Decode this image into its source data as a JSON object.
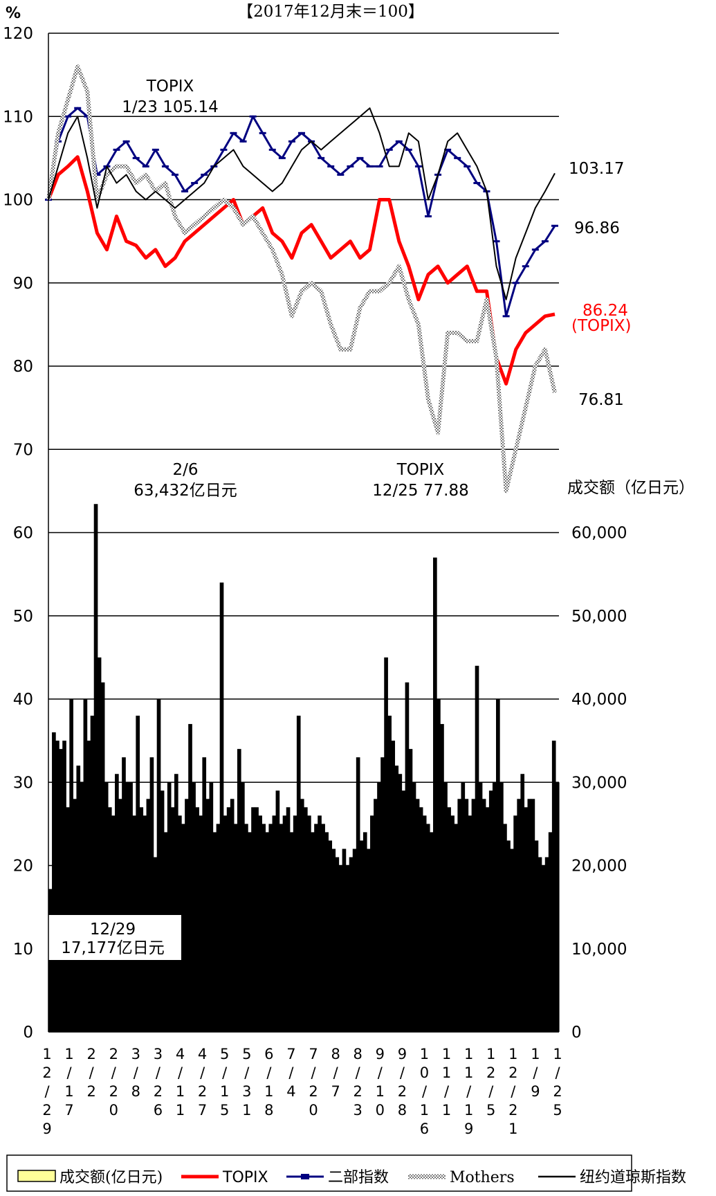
{
  "chart_data": {
    "type": "line",
    "title": "【2017年12月末＝100】",
    "left_axis_unit": "%",
    "left_ticks": [
      "120",
      "110",
      "100",
      "90",
      "80",
      "70",
      "60",
      "50",
      "40",
      "30",
      "20",
      "10",
      "0"
    ],
    "right_axis_label": "成交额（亿日元）",
    "right_ticks": [
      "60,000",
      "50,000",
      "40,000",
      "30,000",
      "20,000",
      "10,000",
      "0"
    ],
    "ylim": [
      0,
      120
    ],
    "volume_ylim": [
      0,
      120000
    ],
    "x_tick_labels": [
      "12/29",
      "1/17",
      "2/2",
      "2/20",
      "3/8",
      "3/26",
      "4/11",
      "4/27",
      "5/15",
      "5/31",
      "6/18",
      "7/4",
      "7/20",
      "8/7",
      "8/23",
      "9/10",
      "9/28",
      "10/16",
      "11/1",
      "11/19",
      "12/5",
      "12/21",
      "1/9",
      "1/25"
    ],
    "series": [
      {
        "name": "TOPIX",
        "color": "#ff0000",
        "values": [
          100,
          103,
          104,
          105.14,
          101,
          96,
          94,
          98,
          95,
          94.5,
          93,
          94,
          92,
          93,
          95,
          96,
          97,
          98,
          99,
          100,
          97,
          98,
          99,
          96,
          95,
          93,
          96,
          97,
          95,
          93,
          94,
          95,
          93,
          94,
          100,
          100,
          95,
          92,
          88,
          91,
          92,
          90,
          91,
          92,
          89,
          89,
          81,
          77.88,
          82,
          84,
          85,
          86,
          86.24
        ]
      },
      {
        "name": "二部指数",
        "color": "#000080",
        "values": [
          100,
          107,
          110,
          111,
          110,
          103,
          104,
          106,
          107,
          105,
          104,
          106,
          104,
          103,
          101,
          102,
          103,
          104,
          106,
          108,
          107,
          110,
          108,
          106,
          105,
          107,
          108,
          107,
          105,
          104,
          103,
          104,
          105,
          104,
          104,
          106,
          107,
          106,
          104,
          98,
          103,
          106,
          105,
          104,
          102,
          101,
          95,
          86,
          90,
          92,
          94,
          95,
          96.86
        ]
      },
      {
        "name": "Mothers",
        "color": "#888888",
        "values": [
          100,
          108,
          112,
          116,
          113,
          100,
          103,
          104,
          104,
          102,
          103,
          101,
          102,
          98,
          96,
          97,
          98,
          99,
          100,
          99,
          97,
          98,
          96,
          94,
          91,
          86,
          89,
          90,
          89,
          85,
          82,
          82,
          87,
          89,
          89,
          90,
          92,
          88,
          85,
          76,
          72,
          84,
          84,
          83,
          83,
          88,
          81,
          65,
          70,
          75,
          80,
          82,
          76.81
        ]
      },
      {
        "name": "纽约道琼斯指数",
        "color": "#000000",
        "values": [
          100,
          104,
          108,
          110,
          105,
          99,
          104,
          102,
          103,
          101,
          100,
          101,
          100,
          99,
          100,
          101,
          102,
          104,
          105,
          106,
          104,
          103,
          102,
          101,
          102,
          104,
          106,
          107,
          106,
          107,
          108,
          109,
          110,
          111,
          108,
          104,
          104,
          108,
          107,
          100,
          103,
          107,
          108,
          106,
          104,
          101,
          92,
          88,
          93,
          96,
          99,
          101,
          103.17
        ]
      }
    ],
    "volume_series": {
      "name": "成交额(亿日元)",
      "color": "#000000",
      "values": [
        17177,
        36000,
        35000,
        34000,
        35000,
        27000,
        40000,
        28000,
        32000,
        30000,
        40000,
        35000,
        38000,
        63432,
        45000,
        42000,
        30000,
        27000,
        26000,
        31000,
        28000,
        33000,
        30000,
        30000,
        26000,
        38000,
        27000,
        26000,
        28000,
        33000,
        21000,
        40000,
        29000,
        24000,
        30000,
        27000,
        31000,
        26000,
        25000,
        28000,
        37000,
        30000,
        27000,
        26000,
        33000,
        28000,
        30000,
        24000,
        25000,
        54000,
        26000,
        27000,
        28000,
        25000,
        34000,
        30000,
        25000,
        24000,
        27000,
        27000,
        26000,
        25000,
        24000,
        25000,
        26000,
        29000,
        25000,
        26000,
        27000,
        24000,
        26000,
        38000,
        28000,
        27000,
        26000,
        24000,
        25000,
        26000,
        25000,
        24000,
        23000,
        22000,
        21000,
        20000,
        22000,
        20000,
        21000,
        22000,
        33000,
        23000,
        24000,
        22000,
        26000,
        28000,
        30000,
        33000,
        45000,
        38000,
        35000,
        32000,
        31000,
        29000,
        42000,
        34000,
        30000,
        28000,
        27000,
        26000,
        25000,
        24000,
        57000,
        40000,
        37000,
        30000,
        27000,
        26000,
        25000,
        28000,
        30000,
        28000,
        26000,
        28000,
        44000,
        30000,
        28000,
        27000,
        29000,
        30000,
        40000,
        30000,
        25000,
        23000,
        22000,
        26000,
        28000,
        31000,
        27000,
        28000,
        28000,
        23000,
        21000,
        20000,
        21000,
        24000,
        35000,
        30000
      ]
    },
    "annotations": [
      {
        "id": "topix-high",
        "text1": "TOPIX",
        "text2": "1/23  105.14"
      },
      {
        "id": "vol-high",
        "text1": "2/6",
        "text2": "63,432亿日元"
      },
      {
        "id": "topix-low",
        "text1": "TOPIX",
        "text2": "12/25  77.88"
      },
      {
        "id": "vol-start",
        "text1": "12/29",
        "text2": "17,177亿日元"
      }
    ],
    "end_labels": [
      {
        "id": "dow-end",
        "text": "103.17"
      },
      {
        "id": "nibu-end",
        "text": "96.86"
      },
      {
        "id": "topix-end",
        "text": "86.24"
      },
      {
        "id": "topix-end-name",
        "text": "(TOPIX)"
      },
      {
        "id": "mothers-end",
        "text": "76.81"
      }
    ],
    "legend": [
      {
        "label": "成交额(亿日元)",
        "kind": "box",
        "color": "#ffff99"
      },
      {
        "label": "TOPIX",
        "kind": "line",
        "color": "#ff0000"
      },
      {
        "label": "二部指数",
        "kind": "marker",
        "color": "#000080"
      },
      {
        "label": "Mothers",
        "kind": "pattern",
        "color": "#888888"
      },
      {
        "label": "纽约道琼斯指数",
        "kind": "line",
        "color": "#000000"
      }
    ],
    "legend_position": "bottom",
    "grid": true
  }
}
